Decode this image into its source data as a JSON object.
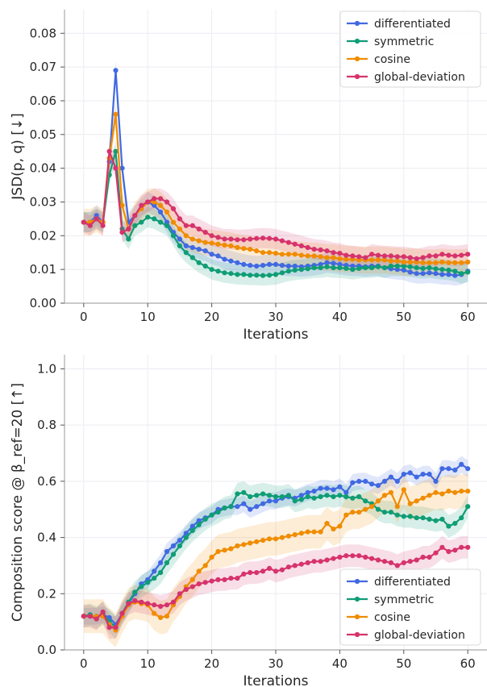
{
  "colors": {
    "differentiated": "#4169e1",
    "symmetric": "#0f9d75",
    "cosine": "#f08c00",
    "global-deviation": "#d6336c"
  },
  "chart_data": [
    {
      "type": "line",
      "xlabel": "Iterations",
      "ylabel": "JSD(p, q)  [↓]",
      "xlim": [
        -3,
        63
      ],
      "ylim": [
        0,
        0.087
      ],
      "xticks": [
        0,
        10,
        20,
        30,
        40,
        50,
        60
      ],
      "yticks": [
        0.0,
        0.01,
        0.02,
        0.03,
        0.04,
        0.05,
        0.06,
        0.07,
        0.08
      ],
      "ytick_labels": [
        "0.00",
        "0.01",
        "0.02",
        "0.03",
        "0.04",
        "0.05",
        "0.06",
        "0.07",
        "0.08"
      ],
      "grid": true,
      "legend_position": "top-right",
      "series": [
        {
          "name": "differentiated",
          "band": 0.003,
          "values": [
            0.024,
            0.024,
            0.026,
            0.024,
            0.042,
            0.069,
            0.04,
            0.024,
            0.026,
            0.028,
            0.03,
            0.029,
            0.027,
            0.024,
            0.021,
            0.019,
            0.017,
            0.0165,
            0.016,
            0.0155,
            0.0145,
            0.014,
            0.013,
            0.0125,
            0.012,
            0.0115,
            0.0112,
            0.011,
            0.0112,
            0.0115,
            0.0115,
            0.0112,
            0.011,
            0.011,
            0.0108,
            0.011,
            0.0112,
            0.0115,
            0.012,
            0.0118,
            0.0115,
            0.0112,
            0.011,
            0.011,
            0.0108,
            0.011,
            0.011,
            0.0105,
            0.0102,
            0.01,
            0.0098,
            0.0092,
            0.0088,
            0.0088,
            0.009,
            0.0088,
            0.0085,
            0.0085,
            0.0082,
            0.0085,
            0.0095
          ]
        },
        {
          "name": "symmetric",
          "band": 0.003,
          "values": [
            0.024,
            0.024,
            0.025,
            0.024,
            0.038,
            0.045,
            0.022,
            0.019,
            0.023,
            0.024,
            0.0255,
            0.025,
            0.024,
            0.023,
            0.02,
            0.017,
            0.015,
            0.0135,
            0.012,
            0.011,
            0.01,
            0.0095,
            0.009,
            0.0088,
            0.0085,
            0.0085,
            0.0083,
            0.0083,
            0.0082,
            0.0083,
            0.0085,
            0.009,
            0.0095,
            0.0098,
            0.01,
            0.0102,
            0.0105,
            0.0105,
            0.0108,
            0.0105,
            0.0105,
            0.0103,
            0.01,
            0.0103,
            0.0105,
            0.0105,
            0.0108,
            0.0105,
            0.011,
            0.011,
            0.011,
            0.0108,
            0.0105,
            0.0103,
            0.0105,
            0.0102,
            0.01,
            0.0098,
            0.0095,
            0.0088,
            0.0092
          ]
        },
        {
          "name": "cosine",
          "band": 0.004,
          "values": [
            0.024,
            0.024,
            0.025,
            0.024,
            0.043,
            0.056,
            0.029,
            0.022,
            0.026,
            0.028,
            0.03,
            0.03,
            0.029,
            0.027,
            0.024,
            0.022,
            0.02,
            0.019,
            0.0185,
            0.018,
            0.0178,
            0.0175,
            0.0172,
            0.017,
            0.0165,
            0.0162,
            0.016,
            0.0155,
            0.015,
            0.015,
            0.0148,
            0.0145,
            0.0145,
            0.0145,
            0.0142,
            0.014,
            0.014,
            0.0138,
            0.0135,
            0.0135,
            0.0132,
            0.013,
            0.013,
            0.0128,
            0.0128,
            0.0128,
            0.0128,
            0.0128,
            0.0125,
            0.0125,
            0.0122,
            0.0122,
            0.0122,
            0.012,
            0.012,
            0.012,
            0.0122,
            0.012,
            0.012,
            0.012,
            0.0122
          ]
        },
        {
          "name": "global-deviation",
          "band": 0.003,
          "values": [
            0.024,
            0.023,
            0.025,
            0.023,
            0.045,
            0.04,
            0.021,
            0.022,
            0.026,
            0.029,
            0.03,
            0.031,
            0.031,
            0.03,
            0.028,
            0.025,
            0.023,
            0.023,
            0.022,
            0.021,
            0.02,
            0.0195,
            0.019,
            0.019,
            0.0188,
            0.0188,
            0.019,
            0.0192,
            0.0193,
            0.0192,
            0.019,
            0.0185,
            0.018,
            0.0175,
            0.017,
            0.0165,
            0.016,
            0.0158,
            0.0155,
            0.015,
            0.0148,
            0.0142,
            0.014,
            0.0138,
            0.0135,
            0.0145,
            0.0142,
            0.014,
            0.014,
            0.0138,
            0.0138,
            0.0135,
            0.0132,
            0.0135,
            0.014,
            0.014,
            0.0145,
            0.0142,
            0.014,
            0.0142,
            0.0145
          ]
        }
      ]
    },
    {
      "type": "line",
      "xlabel": "Iterations",
      "ylabel": "Composition score @ β_ref=20  [↑]",
      "xlim": [
        -3,
        63
      ],
      "ylim": [
        0,
        1.05
      ],
      "xticks": [
        0,
        10,
        20,
        30,
        40,
        50,
        60
      ],
      "yticks": [
        0.0,
        0.2,
        0.4,
        0.6,
        0.8,
        1.0
      ],
      "ytick_labels": [
        "0.0",
        "0.2",
        "0.4",
        "0.6",
        "0.8",
        "1.0"
      ],
      "grid": true,
      "legend_position": "bottom-right",
      "series": [
        {
          "name": "differentiated",
          "band": 0.03,
          "values": [
            0.12,
            0.12,
            0.12,
            0.125,
            0.115,
            0.09,
            0.13,
            0.165,
            0.2,
            0.235,
            0.25,
            0.28,
            0.31,
            0.35,
            0.37,
            0.39,
            0.415,
            0.44,
            0.46,
            0.47,
            0.48,
            0.5,
            0.505,
            0.51,
            0.51,
            0.52,
            0.5,
            0.51,
            0.52,
            0.53,
            0.53,
            0.54,
            0.545,
            0.54,
            0.55,
            0.56,
            0.565,
            0.575,
            0.575,
            0.57,
            0.58,
            0.56,
            0.595,
            0.6,
            0.6,
            0.59,
            0.585,
            0.6,
            0.615,
            0.6,
            0.625,
            0.63,
            0.615,
            0.625,
            0.625,
            0.6,
            0.645,
            0.645,
            0.64,
            0.66,
            0.645
          ]
        },
        {
          "name": "symmetric",
          "band": 0.04,
          "values": [
            0.12,
            0.125,
            0.115,
            0.13,
            0.1,
            0.08,
            0.13,
            0.17,
            0.205,
            0.225,
            0.24,
            0.255,
            0.275,
            0.31,
            0.34,
            0.37,
            0.4,
            0.425,
            0.445,
            0.465,
            0.48,
            0.49,
            0.505,
            0.51,
            0.555,
            0.56,
            0.545,
            0.55,
            0.555,
            0.55,
            0.545,
            0.545,
            0.55,
            0.53,
            0.535,
            0.545,
            0.54,
            0.545,
            0.55,
            0.545,
            0.55,
            0.545,
            0.54,
            0.545,
            0.53,
            0.52,
            0.5,
            0.49,
            0.49,
            0.48,
            0.475,
            0.475,
            0.47,
            0.47,
            0.465,
            0.46,
            0.465,
            0.44,
            0.45,
            0.47,
            0.51
          ]
        },
        {
          "name": "cosine",
          "band": 0.06,
          "values": [
            0.12,
            0.12,
            0.12,
            0.12,
            0.09,
            0.07,
            0.12,
            0.16,
            0.17,
            0.165,
            0.16,
            0.13,
            0.115,
            0.12,
            0.16,
            0.19,
            0.225,
            0.25,
            0.28,
            0.3,
            0.33,
            0.35,
            0.355,
            0.36,
            0.37,
            0.375,
            0.38,
            0.385,
            0.39,
            0.395,
            0.395,
            0.4,
            0.405,
            0.41,
            0.415,
            0.42,
            0.42,
            0.42,
            0.45,
            0.43,
            0.44,
            0.48,
            0.49,
            0.49,
            0.5,
            0.51,
            0.53,
            0.55,
            0.56,
            0.51,
            0.57,
            0.52,
            0.53,
            0.54,
            0.55,
            0.56,
            0.555,
            0.565,
            0.56,
            0.565,
            0.565
          ]
        },
        {
          "name": "global-deviation",
          "band": 0.04,
          "values": [
            0.12,
            0.12,
            0.11,
            0.135,
            0.08,
            0.08,
            0.13,
            0.165,
            0.175,
            0.17,
            0.165,
            0.16,
            0.155,
            0.16,
            0.17,
            0.2,
            0.215,
            0.225,
            0.235,
            0.24,
            0.245,
            0.25,
            0.25,
            0.255,
            0.255,
            0.27,
            0.275,
            0.275,
            0.28,
            0.29,
            0.28,
            0.285,
            0.295,
            0.3,
            0.305,
            0.31,
            0.315,
            0.315,
            0.32,
            0.325,
            0.33,
            0.335,
            0.335,
            0.335,
            0.33,
            0.325,
            0.32,
            0.315,
            0.31,
            0.3,
            0.31,
            0.315,
            0.32,
            0.33,
            0.33,
            0.345,
            0.365,
            0.35,
            0.355,
            0.365,
            0.365
          ]
        }
      ]
    }
  ]
}
